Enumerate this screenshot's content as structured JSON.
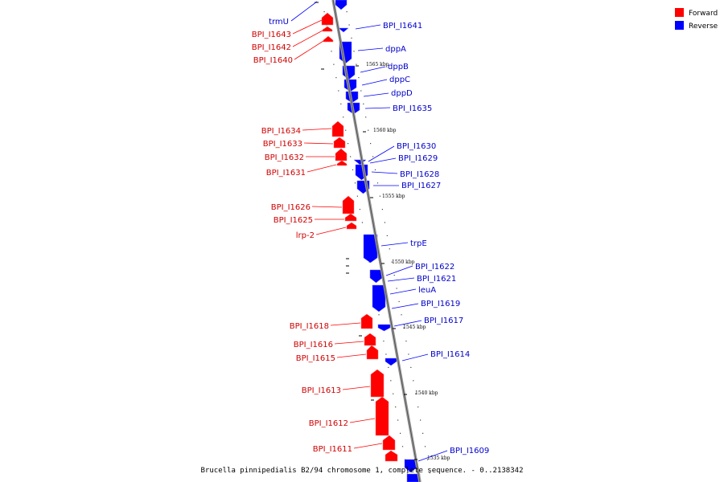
{
  "caption": "Brucella pinnipedialis B2/94 chromosome 1, complete sequence. - 0..2138342",
  "legend": [
    {
      "label": "Forward",
      "color": "#ff0000"
    },
    {
      "label": "Reverse",
      "color": "#0000ff"
    }
  ],
  "scale_ticks": [
    "1565 kbp",
    "1560 kbp",
    "1555 kbp",
    "1550 kbp",
    "1545 kbp",
    "1540 kbp",
    "1535 kbp"
  ],
  "forward_genes": [
    "BPI_I1643",
    "BPI_I1642",
    "BPI_I1640",
    "BPI_I1634",
    "BPI_I1633",
    "BPI_I1632",
    "BPI_I1631",
    "BPI_I1626",
    "BPI_I1625",
    "lrp-2",
    "BPI_I1618",
    "BPI_I1616",
    "BPI_I1615",
    "BPI_I1613",
    "BPI_I1612",
    "BPI_I1611"
  ],
  "reverse_genes": [
    "trmU",
    "BPI_I1641",
    "dppA",
    "dppB",
    "dppC",
    "dppD",
    "BPI_I1635",
    "BPI_I1630",
    "BPI_I1629",
    "BPI_I1628",
    "BPI_I1627",
    "trpE",
    "BPI_I1622",
    "BPI_I1621",
    "leuA",
    "BPI_I1619",
    "BPI_I1617",
    "BPI_I1614",
    "BPI_I1609"
  ]
}
